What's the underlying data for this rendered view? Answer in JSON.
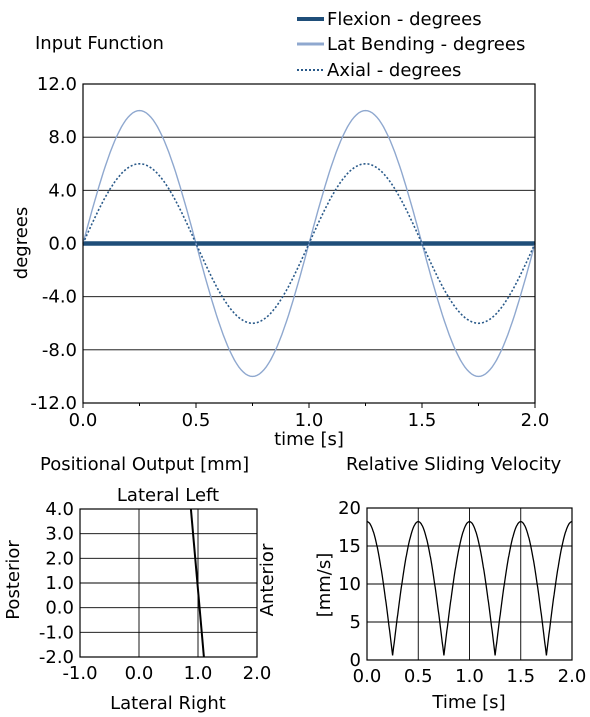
{
  "chart_data": [
    {
      "type": "line",
      "title": "Input Function",
      "xlabel": "time [s]",
      "ylabel": "degrees",
      "xlim": [
        0,
        2
      ],
      "ylim": [
        -12,
        12
      ],
      "x_ticks": [
        0,
        0.5,
        1,
        1.5,
        2
      ],
      "x_tick_labels": [
        "0.0",
        "0.5",
        "1.0",
        "1.5",
        "2.0"
      ],
      "y_ticks": [
        12,
        8,
        4,
        0,
        -4,
        -8,
        -12
      ],
      "y_tick_labels": [
        "12.0",
        "8.0",
        "4.0",
        "0.0",
        "-4.0",
        "-8.0",
        "-12.0"
      ],
      "grid": "horizontal",
      "legend": "top-right, above plot",
      "series": [
        {
          "name": "Flexion - degrees",
          "color": "#1f4e79",
          "style": "thick",
          "x": [
            0,
            0.5,
            1.0,
            1.5,
            2.0
          ],
          "y": [
            0,
            0,
            0,
            0,
            0
          ]
        },
        {
          "name": "Lat Bending - degrees",
          "color": "#8fa8cf",
          "style": "solid",
          "x": [
            0,
            0.125,
            0.25,
            0.375,
            0.5,
            0.625,
            0.75,
            0.875,
            1.0,
            1.125,
            1.25,
            1.375,
            1.5,
            1.625,
            1.75,
            1.875,
            2.0
          ],
          "y": [
            0,
            7.1,
            10,
            7.1,
            0,
            -7.1,
            -10,
            -7.1,
            0,
            7.1,
            10,
            7.1,
            0,
            -7.1,
            -10,
            -7.1,
            0
          ]
        },
        {
          "name": "Axial - degrees",
          "color": "#2a5a8a",
          "style": "dotted",
          "x": [
            0,
            0.125,
            0.25,
            0.375,
            0.5,
            0.625,
            0.75,
            0.875,
            1.0,
            1.125,
            1.25,
            1.375,
            1.5,
            1.625,
            1.75,
            1.875,
            2.0
          ],
          "y": [
            0,
            4.2,
            6,
            4.2,
            0,
            -4.2,
            -6,
            -4.2,
            0,
            4.2,
            6,
            4.2,
            0,
            -4.2,
            -6,
            -4.2,
            0
          ]
        }
      ]
    },
    {
      "type": "line",
      "title": "Positional Output [mm]",
      "xlabel": "Lateral Right",
      "top_label": "Lateral Left",
      "ylabel": "Posterior",
      "right_label": "Anterior",
      "xlim": [
        -1,
        2
      ],
      "ylim": [
        -2,
        4
      ],
      "x_ticks": [
        -1,
        0,
        1,
        2
      ],
      "x_tick_labels": [
        "-1.0",
        "0.0",
        "1.0",
        "2.0"
      ],
      "y_ticks": [
        4,
        3,
        2,
        1,
        0,
        -1,
        -2
      ],
      "y_tick_labels": [
        "4.0",
        "3.0",
        "2.0",
        "1.0",
        "0.0",
        "-1.0",
        "-2.0"
      ],
      "grid": "both",
      "series": [
        {
          "color": "#000000",
          "x": [
            0.88,
            1.1
          ],
          "y": [
            4.0,
            -2.0
          ]
        }
      ]
    },
    {
      "type": "line",
      "title": "Relative Sliding Velocity",
      "xlabel": "Time [s]",
      "ylabel": "[mm/s]",
      "xlim": [
        0,
        2
      ],
      "ylim": [
        0,
        20
      ],
      "x_ticks": [
        0,
        0.5,
        1,
        1.5,
        2
      ],
      "x_tick_labels": [
        "0.0",
        "0.5",
        "1.0",
        "1.5",
        "2.0"
      ],
      "y_ticks": [
        20,
        15,
        10,
        5,
        0
      ],
      "y_tick_labels": [
        "20",
        "15",
        "10",
        "5",
        "0"
      ],
      "grid": "both",
      "series": [
        {
          "color": "#000000",
          "peak": 18.2,
          "trough": 0.6,
          "period": 0.5,
          "phase": 0.25
        }
      ]
    }
  ]
}
